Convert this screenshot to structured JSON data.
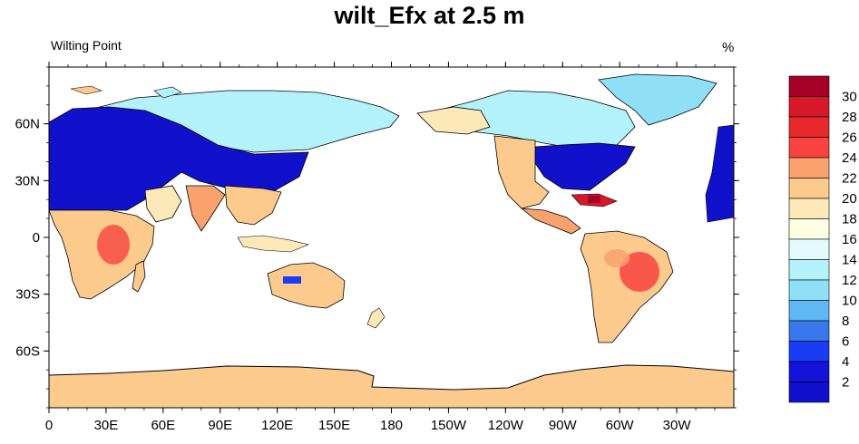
{
  "figure": {
    "title": "wilt_Efx at 2.5 m",
    "left_string": "Wilting Point",
    "right_string": "%"
  },
  "map": {
    "projection": "cylindrical equidistant",
    "center_lon": 180,
    "x_tick_labels": [
      "0",
      "30E",
      "60E",
      "90E",
      "120E",
      "150E",
      "180",
      "150W",
      "120W",
      "90W",
      "60W",
      "30W"
    ],
    "y_tick_labels": [
      "60N",
      "30N",
      "0",
      "30S",
      "60S"
    ],
    "lat_range": [
      -90,
      90
    ],
    "lon_range": [
      0,
      360
    ]
  },
  "colorbar": {
    "labels": [
      "30",
      "28",
      "26",
      "24",
      "22",
      "20",
      "18",
      "16",
      "14",
      "12",
      "10",
      "8",
      "6",
      "4",
      "2"
    ],
    "colors": [
      "#a50026",
      "#d7182a",
      "#e8292c",
      "#f94340",
      "#f9a26d",
      "#fbca8c",
      "#fde8b8",
      "#fefee3",
      "#e3fbfe",
      "#b3f2fb",
      "#8fe0f6",
      "#5fb7f4",
      "#3a77ec",
      "#1b3cf5",
      "#1313d9",
      "#1010cc"
    ]
  },
  "regions": [
    {
      "name": "siberia-low",
      "color": "#1111cc"
    },
    {
      "name": "north-america-low",
      "color": "#1111cc"
    },
    {
      "name": "africa-medium",
      "color": "#fbca8c"
    },
    {
      "name": "south-america-medium",
      "color": "#fbca8c"
    },
    {
      "name": "australia-medium",
      "color": "#fbca8c"
    },
    {
      "name": "antarctica",
      "color": "#fbca8c"
    },
    {
      "name": "arctic-light",
      "color": "#b3f2fb"
    },
    {
      "name": "high-spots",
      "color": "#f94340"
    }
  ]
}
